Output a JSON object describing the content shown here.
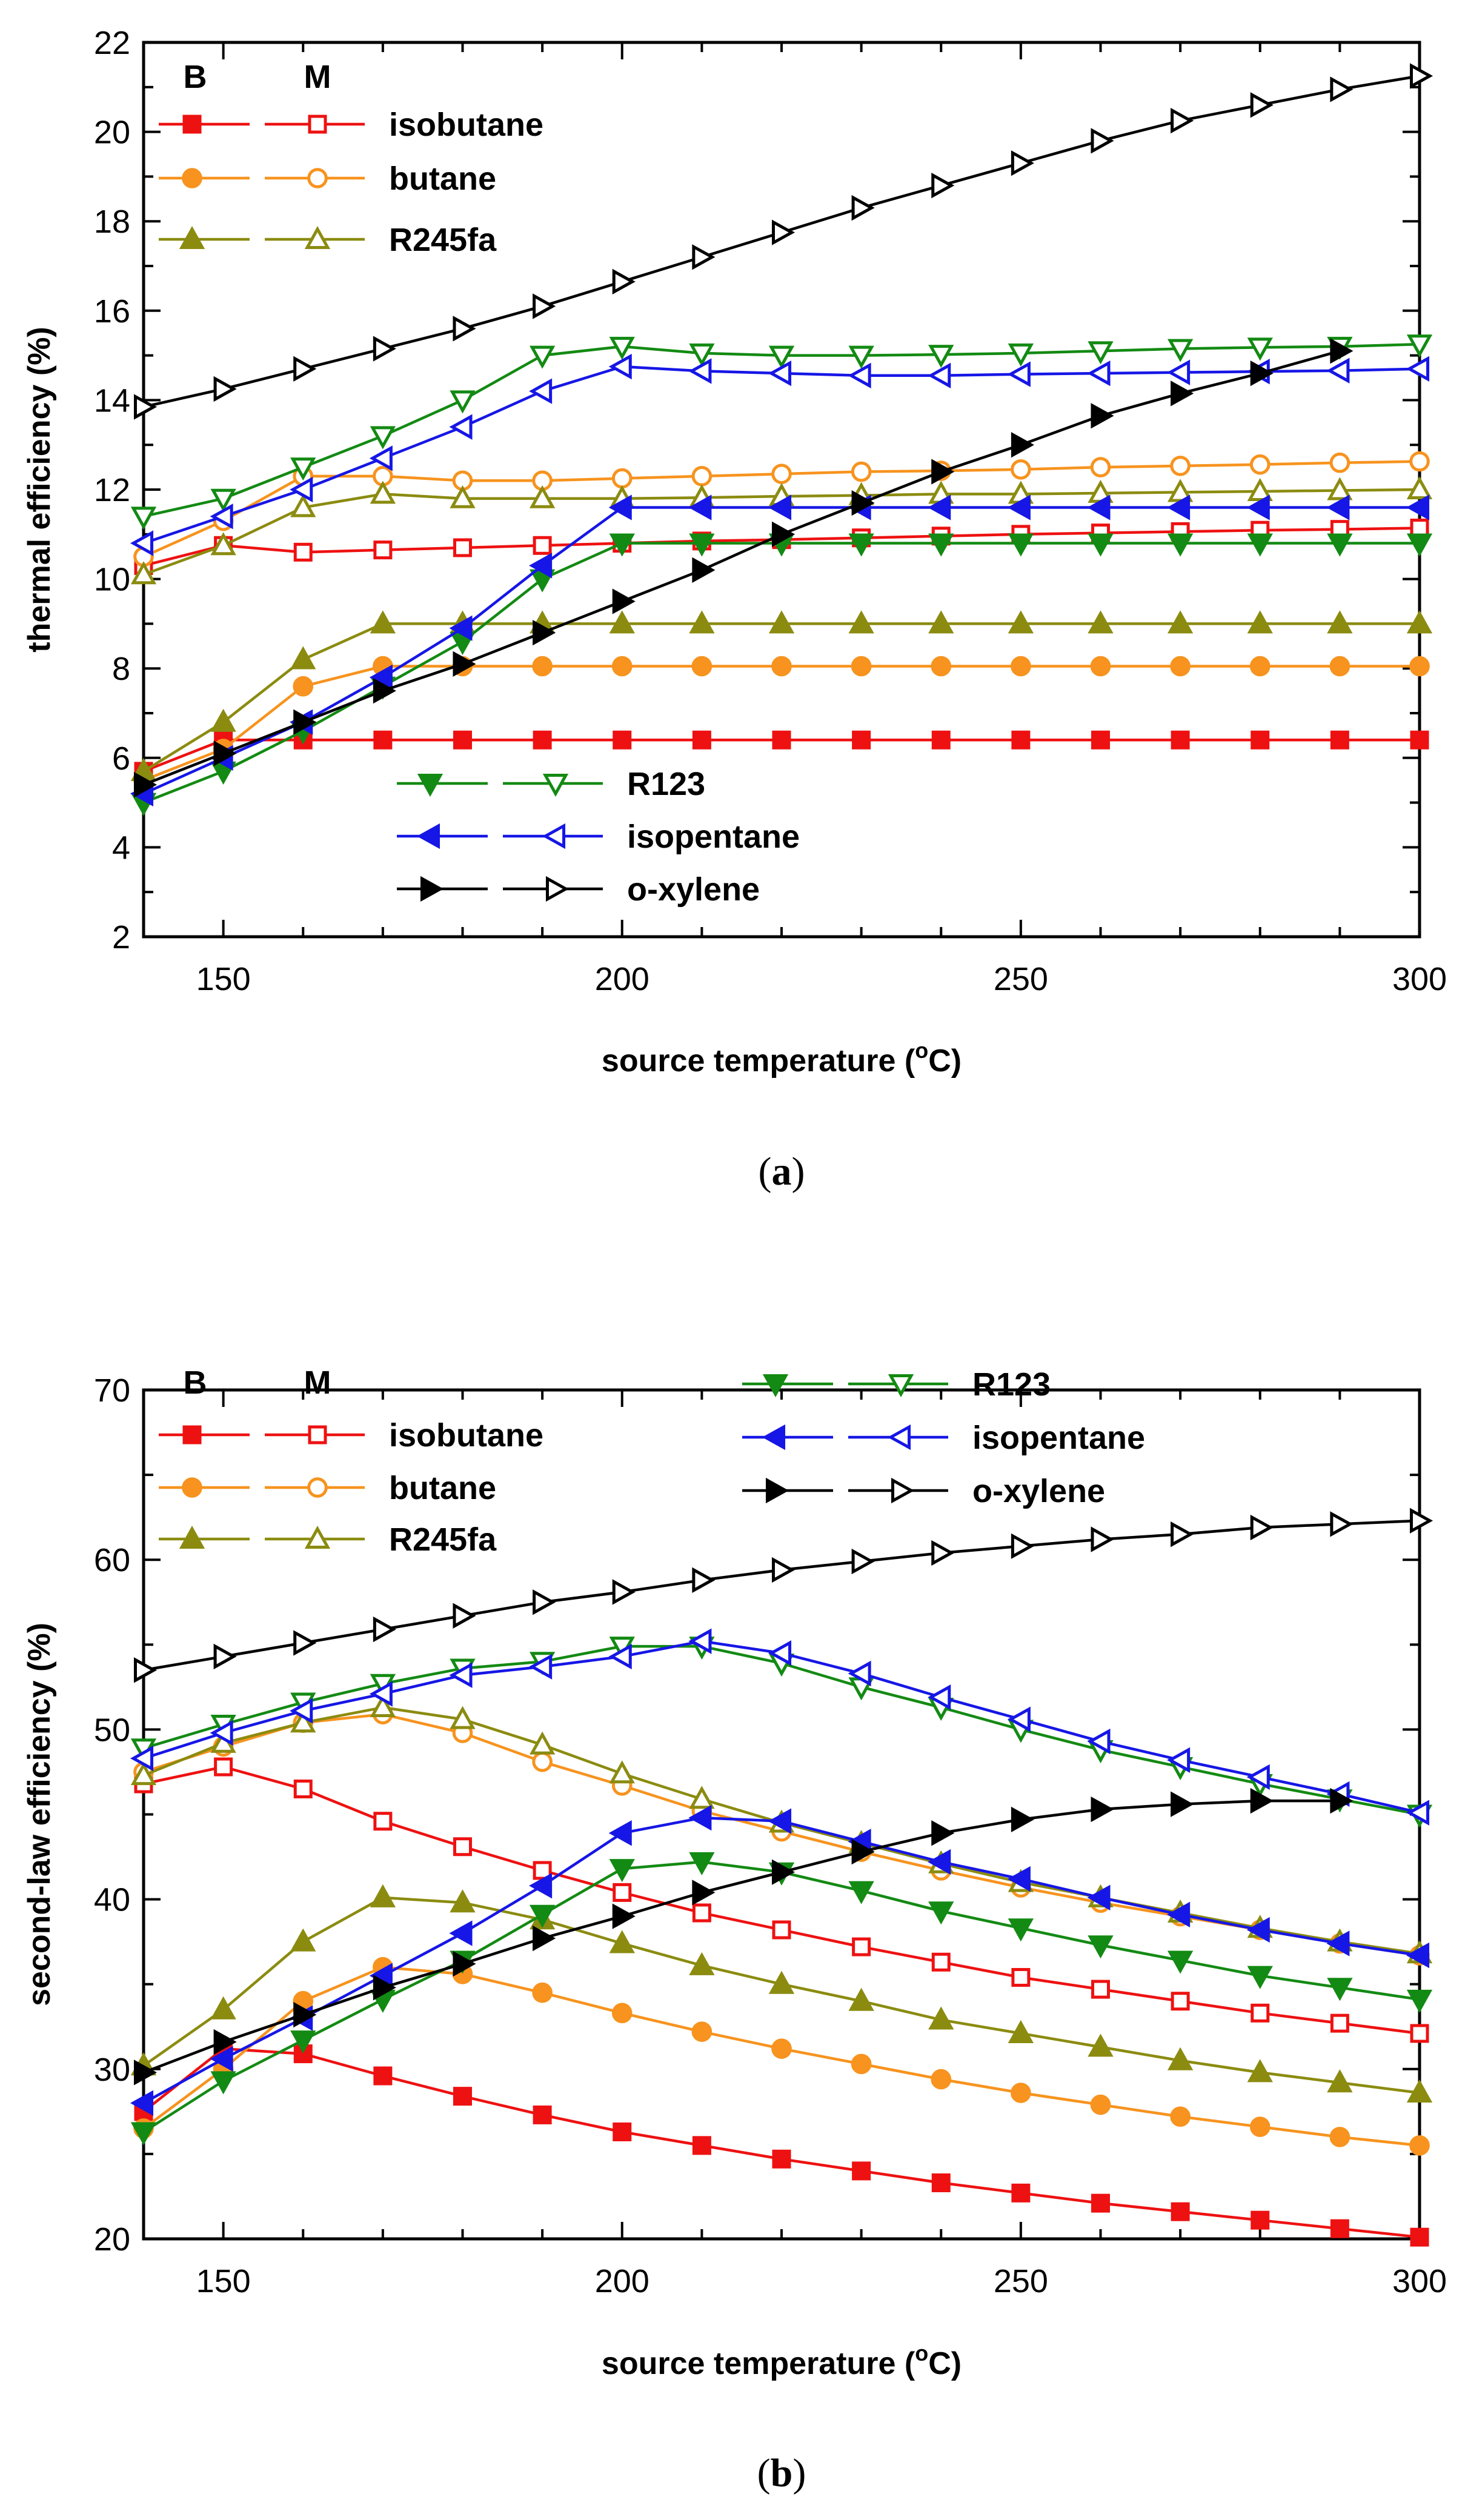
{
  "colors": {
    "isobutane": "#ee1111",
    "butane": "#f7931e",
    "R245fa": "#8b8b10",
    "R123": "#138a13",
    "isopentane": "#1616e6",
    "o-xylene": "#000000"
  },
  "chart_data": [
    {
      "type": "line",
      "caption": "(a)",
      "caption_letter": "a",
      "xlabel": "source temperature (",
      "xlabel_unit": "C)",
      "xlabel_degree": "o",
      "ylabel": "thermal efficiency (%)",
      "xlim": [
        140,
        300
      ],
      "ylim": [
        2,
        22
      ],
      "xticks": [
        150,
        200,
        250,
        300
      ],
      "yticks": [
        2,
        4,
        6,
        8,
        10,
        12,
        14,
        16,
        18,
        20,
        22
      ],
      "legend_header": {
        "B": "B",
        "M": "M"
      },
      "x": [
        140,
        150,
        160,
        170,
        180,
        190,
        200,
        210,
        220,
        230,
        240,
        250,
        260,
        270,
        280,
        290,
        300
      ],
      "series": [
        {
          "name": "isobutane",
          "marker": "square",
          "B": [
            5.7,
            6.4,
            6.4,
            6.4,
            6.4,
            6.4,
            6.4,
            6.4,
            6.4,
            6.4,
            6.4,
            6.4,
            6.4,
            6.4,
            6.4,
            6.4,
            6.4
          ],
          "M": [
            10.3,
            10.75,
            10.6,
            10.65,
            10.7,
            10.75,
            10.8,
            10.85,
            10.88,
            10.92,
            10.96,
            11.0,
            11.03,
            11.06,
            11.09,
            11.11,
            11.14
          ]
        },
        {
          "name": "butane",
          "marker": "circle",
          "B": [
            5.5,
            6.2,
            7.6,
            8.05,
            8.05,
            8.05,
            8.05,
            8.05,
            8.05,
            8.05,
            8.05,
            8.05,
            8.05,
            8.05,
            8.05,
            8.05,
            8.05
          ],
          "M": [
            10.5,
            11.3,
            12.3,
            12.3,
            12.2,
            12.2,
            12.25,
            12.3,
            12.35,
            12.4,
            12.42,
            12.45,
            12.5,
            12.53,
            12.56,
            12.6,
            12.63
          ]
        },
        {
          "name": "R245fa",
          "marker": "triangle-up",
          "B": [
            5.7,
            6.8,
            8.2,
            9.0,
            9.0,
            9.0,
            9.0,
            9.0,
            9.0,
            9.0,
            9.0,
            9.0,
            9.0,
            9.0,
            9.0,
            9.0,
            9.0
          ],
          "M": [
            10.1,
            10.75,
            11.6,
            11.9,
            11.8,
            11.8,
            11.8,
            11.82,
            11.85,
            11.87,
            11.9,
            11.9,
            11.92,
            11.94,
            11.96,
            11.98,
            12.0
          ]
        },
        {
          "name": "R123",
          "marker": "triangle-down",
          "B": [
            5.0,
            5.7,
            6.6,
            7.6,
            8.6,
            10.0,
            10.8,
            10.8,
            10.8,
            10.8,
            10.8,
            10.8,
            10.8,
            10.8,
            10.8,
            10.8,
            10.8
          ],
          "M": [
            11.4,
            11.8,
            12.5,
            13.2,
            14.0,
            15.0,
            15.2,
            15.05,
            15.0,
            15.0,
            15.02,
            15.05,
            15.1,
            15.15,
            15.18,
            15.2,
            15.25
          ]
        },
        {
          "name": "isopentane",
          "marker": "triangle-left",
          "B": [
            5.2,
            6.0,
            6.8,
            7.8,
            8.9,
            10.3,
            11.6,
            11.6,
            11.6,
            11.6,
            11.6,
            11.6,
            11.6,
            11.6,
            11.6,
            11.6,
            11.6
          ],
          "M": [
            10.8,
            11.4,
            12.0,
            12.7,
            13.4,
            14.2,
            14.75,
            14.65,
            14.6,
            14.55,
            14.55,
            14.58,
            14.6,
            14.62,
            14.64,
            14.66,
            14.7
          ]
        },
        {
          "name": "o-xylene",
          "marker": "triangle-right",
          "B": [
            5.4,
            6.1,
            6.8,
            7.5,
            8.1,
            8.8,
            9.5,
            10.2,
            11.0,
            11.7,
            12.4,
            13.0,
            13.65,
            14.15,
            14.6,
            15.1,
            null
          ],
          "M": [
            13.85,
            14.25,
            14.7,
            15.15,
            15.6,
            16.1,
            16.65,
            17.2,
            17.75,
            18.3,
            18.8,
            19.3,
            19.8,
            20.25,
            20.6,
            20.95,
            21.25
          ]
        }
      ],
      "legend_groups": [
        [
          "isobutane",
          "butane",
          "R245fa"
        ],
        [
          "R123",
          "isopentane",
          "o-xylene"
        ]
      ]
    },
    {
      "type": "line",
      "caption": "(b)",
      "caption_letter": "b",
      "xlabel": "source temperature (",
      "xlabel_unit": "C)",
      "xlabel_degree": "o",
      "ylabel": "second-law efficiency (%)",
      "xlim": [
        140,
        300
      ],
      "ylim": [
        20,
        70
      ],
      "xticks": [
        150,
        200,
        250,
        300
      ],
      "yticks": [
        20,
        30,
        40,
        50,
        60,
        70
      ],
      "legend_header": {
        "B": "B",
        "M": "M"
      },
      "x": [
        140,
        150,
        160,
        170,
        180,
        190,
        200,
        210,
        220,
        230,
        240,
        250,
        260,
        270,
        280,
        290,
        300
      ],
      "series": [
        {
          "name": "isobutane",
          "marker": "square",
          "B": [
            27.5,
            31.2,
            30.9,
            29.6,
            28.4,
            27.3,
            26.3,
            25.5,
            24.7,
            24.0,
            23.3,
            22.7,
            22.1,
            21.6,
            21.1,
            20.6,
            20.1
          ],
          "M": [
            46.8,
            47.8,
            46.5,
            44.6,
            43.1,
            41.7,
            40.4,
            39.2,
            38.2,
            37.2,
            36.3,
            35.4,
            34.7,
            34.0,
            33.3,
            32.7,
            32.1
          ]
        },
        {
          "name": "butane",
          "marker": "circle",
          "B": [
            26.5,
            30.0,
            34.0,
            36.0,
            35.6,
            34.5,
            33.3,
            32.2,
            31.2,
            30.3,
            29.4,
            28.6,
            27.9,
            27.2,
            26.6,
            26.0,
            25.5
          ],
          "M": [
            47.5,
            49.0,
            50.4,
            50.9,
            49.8,
            48.1,
            46.7,
            45.2,
            44.0,
            42.8,
            41.7,
            40.7,
            39.8,
            39.0,
            38.2,
            37.4,
            36.7
          ]
        },
        {
          "name": "R245fa",
          "marker": "triangle-up",
          "B": [
            30.2,
            33.5,
            37.5,
            40.1,
            39.8,
            38.8,
            37.4,
            36.1,
            35.0,
            34.0,
            32.9,
            32.1,
            31.3,
            30.5,
            29.8,
            29.2,
            28.6
          ],
          "M": [
            47.3,
            49.2,
            50.4,
            51.3,
            50.6,
            49.1,
            47.4,
            45.9,
            44.5,
            43.3,
            42.1,
            41.0,
            40.1,
            39.2,
            38.3,
            37.5,
            36.8
          ]
        },
        {
          "name": "R123",
          "marker": "triangle-down",
          "B": [
            26.3,
            29.3,
            31.7,
            34.1,
            36.4,
            39.1,
            41.8,
            42.2,
            41.6,
            40.5,
            39.3,
            38.3,
            37.3,
            36.4,
            35.5,
            34.8,
            34.1
          ],
          "M": [
            48.9,
            50.3,
            51.6,
            52.7,
            53.6,
            54.0,
            54.9,
            54.9,
            53.9,
            52.5,
            51.3,
            50.0,
            48.8,
            47.8,
            46.8,
            45.9,
            45.0
          ]
        },
        {
          "name": "isopentane",
          "marker": "triangle-left",
          "B": [
            28.0,
            30.6,
            33.0,
            35.5,
            38.0,
            40.8,
            43.9,
            44.8,
            44.6,
            43.4,
            42.2,
            41.2,
            40.1,
            39.1,
            38.2,
            37.4,
            36.7
          ],
          "M": [
            48.3,
            49.8,
            51.1,
            52.1,
            53.2,
            53.7,
            54.3,
            55.2,
            54.5,
            53.3,
            51.9,
            50.6,
            49.3,
            48.2,
            47.2,
            46.2,
            45.1
          ]
        },
        {
          "name": "o-xylene",
          "marker": "triangle-right",
          "B": [
            29.8,
            31.6,
            33.2,
            34.8,
            36.2,
            37.7,
            39.0,
            40.4,
            41.6,
            42.8,
            43.9,
            44.7,
            45.3,
            45.6,
            45.8,
            45.8,
            null
          ],
          "M": [
            53.5,
            54.3,
            55.1,
            55.9,
            56.7,
            57.5,
            58.1,
            58.8,
            59.4,
            59.9,
            60.4,
            60.8,
            61.2,
            61.5,
            61.9,
            62.1,
            62.3
          ]
        }
      ],
      "legend_groups": [
        [
          "isobutane",
          "butane",
          "R245fa"
        ],
        [
          "R123",
          "isopentane",
          "o-xylene"
        ]
      ]
    }
  ]
}
